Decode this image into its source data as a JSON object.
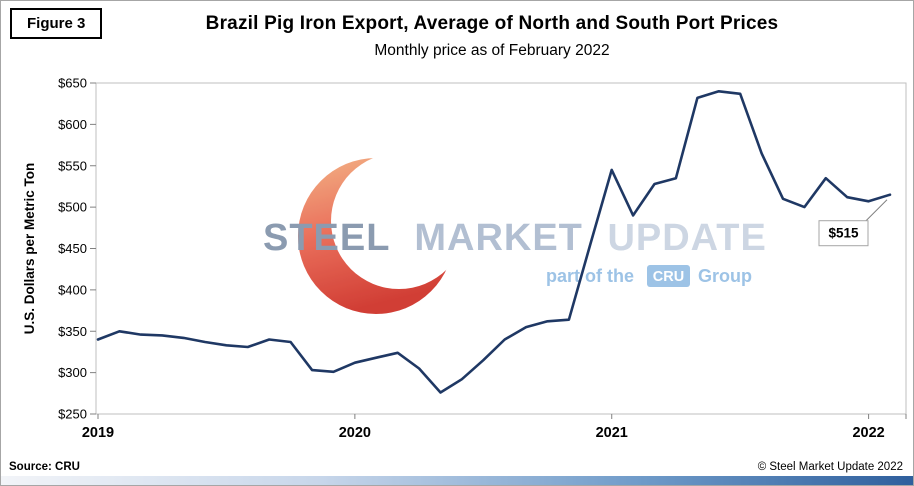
{
  "figure_label": "Figure 3",
  "title": "Brazil Pig Iron Export, Average of North and South Port Prices",
  "subtitle": "Monthly price as of February 2022",
  "source": "Source: CRU",
  "copyright": "© Steel Market Update 2022",
  "watermark": {
    "steel": "STEEL",
    "market": "MARKET",
    "update": "UPDATE",
    "part_of_the": "part of the",
    "cru": "CRU",
    "group": "Group",
    "steel_color": "#8b9bb0",
    "market_color": "#b2bfd2",
    "update_color": "#cdd6e3",
    "cru_blue": "#9dc3e6"
  },
  "chart_data": {
    "type": "line",
    "title": "Brazil Pig Iron Export, Average of North and South Port Prices",
    "subtitle": "Monthly price as of February 2022",
    "ylabel": "U.S. Dollars per Metric Ton",
    "ylim": [
      250,
      650
    ],
    "ytick_step": 50,
    "ytick_prefix": "$",
    "grid": false,
    "legend": "none",
    "xticks": [
      {
        "label": "2019",
        "index": 0
      },
      {
        "label": "2020",
        "index": 12
      },
      {
        "label": "2021",
        "index": 24
      },
      {
        "label": "2022",
        "index": 36
      }
    ],
    "months": [
      "2019-01",
      "2019-02",
      "2019-03",
      "2019-04",
      "2019-05",
      "2019-06",
      "2019-07",
      "2019-08",
      "2019-09",
      "2019-10",
      "2019-11",
      "2019-12",
      "2020-01",
      "2020-02",
      "2020-03",
      "2020-04",
      "2020-05",
      "2020-06",
      "2020-07",
      "2020-08",
      "2020-09",
      "2020-10",
      "2020-11",
      "2020-12",
      "2021-01",
      "2021-02",
      "2021-03",
      "2021-04",
      "2021-05",
      "2021-06",
      "2021-07",
      "2021-08",
      "2021-09",
      "2021-10",
      "2021-11",
      "2021-12",
      "2022-01",
      "2022-02"
    ],
    "series": [
      {
        "name": "Brazil pig iron export price, average of North and South ports (USD/metric ton)",
        "color": "#1f3864",
        "values": [
          340,
          350,
          346,
          345,
          342,
          337,
          333,
          331,
          340,
          337,
          303,
          301,
          312,
          318,
          324,
          305,
          276,
          292,
          315,
          340,
          355,
          362,
          364,
          455,
          545,
          490,
          528,
          535,
          632,
          640,
          637,
          565,
          510,
          500,
          535,
          512,
          507,
          515
        ]
      }
    ],
    "last_value_label": "$515"
  }
}
